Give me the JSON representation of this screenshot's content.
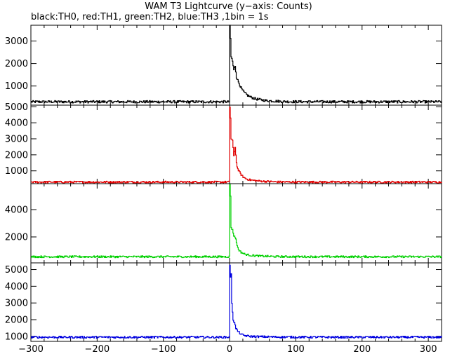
{
  "title": "WAM T3 Lightcurve (y−axis: Counts)",
  "subtitle": "black:TH0, red:TH1, green:TH2, blue:TH3 ,1bin = 1s",
  "chart_data": {
    "type": "line",
    "x_range": [
      -300,
      320
    ],
    "x_ticks": [
      -300,
      -200,
      -100,
      0,
      100,
      200,
      300
    ],
    "x_tick_labels": [
      "−300",
      "−200",
      "−100",
      "0",
      "100",
      "200",
      "300"
    ],
    "panels": [
      {
        "name": "TH0",
        "color": "#000000",
        "ylim": [
          150,
          3700
        ],
        "y_ticks": [
          1000,
          2000,
          3000
        ],
        "baseline": 300,
        "noise": 55,
        "peaks": [
          [
            0,
            3700
          ],
          [
            1,
            3100
          ],
          [
            2,
            2300
          ],
          [
            4,
            2100
          ],
          [
            6,
            1700
          ],
          [
            8,
            1900
          ],
          [
            10,
            1400
          ],
          [
            12,
            1250
          ],
          [
            15,
            1050
          ],
          [
            18,
            850
          ],
          [
            22,
            700
          ],
          [
            26,
            600
          ],
          [
            32,
            500
          ],
          [
            40,
            420
          ],
          [
            55,
            350
          ],
          [
            80,
            310
          ]
        ]
      },
      {
        "name": "TH1",
        "color": "#e00000",
        "ylim": [
          200,
          5100
        ],
        "y_ticks": [
          1000,
          2000,
          3000,
          4000,
          5000
        ],
        "baseline": 300,
        "noise": 60,
        "peaks": [
          [
            0,
            5000
          ],
          [
            1,
            4300
          ],
          [
            2,
            3000
          ],
          [
            4,
            2900
          ],
          [
            6,
            1900
          ],
          [
            8,
            2500
          ],
          [
            10,
            1500
          ],
          [
            12,
            1100
          ],
          [
            15,
            900
          ],
          [
            18,
            700
          ],
          [
            22,
            560
          ],
          [
            26,
            480
          ],
          [
            32,
            420
          ],
          [
            45,
            360
          ],
          [
            70,
            310
          ]
        ]
      },
      {
        "name": "TH2",
        "color": "#00d000",
        "ylim": [
          100,
          5900
        ],
        "y_ticks": [
          2000,
          4000
        ],
        "baseline": 550,
        "noise": 70,
        "peaks": [
          [
            0,
            5800
          ],
          [
            1,
            5000
          ],
          [
            2,
            2700
          ],
          [
            4,
            2500
          ],
          [
            6,
            2100
          ],
          [
            8,
            2000
          ],
          [
            10,
            1600
          ],
          [
            12,
            1200
          ],
          [
            15,
            950
          ],
          [
            18,
            850
          ],
          [
            22,
            750
          ],
          [
            26,
            700
          ],
          [
            32,
            650
          ],
          [
            45,
            600
          ],
          [
            70,
            560
          ]
        ]
      },
      {
        "name": "TH3",
        "color": "#0000e0",
        "ylim": [
          700,
          5400
        ],
        "y_ticks": [
          1000,
          2000,
          3000,
          4000,
          5000
        ],
        "baseline": 950,
        "noise": 60,
        "peaks": [
          [
            0,
            5300
          ],
          [
            1,
            4500
          ],
          [
            2,
            4700
          ],
          [
            3,
            3000
          ],
          [
            5,
            2000
          ],
          [
            7,
            1800
          ],
          [
            9,
            1500
          ],
          [
            12,
            1300
          ],
          [
            15,
            1200
          ],
          [
            18,
            1100
          ],
          [
            22,
            1050
          ],
          [
            30,
            1000
          ],
          [
            45,
            980
          ]
        ]
      }
    ]
  }
}
